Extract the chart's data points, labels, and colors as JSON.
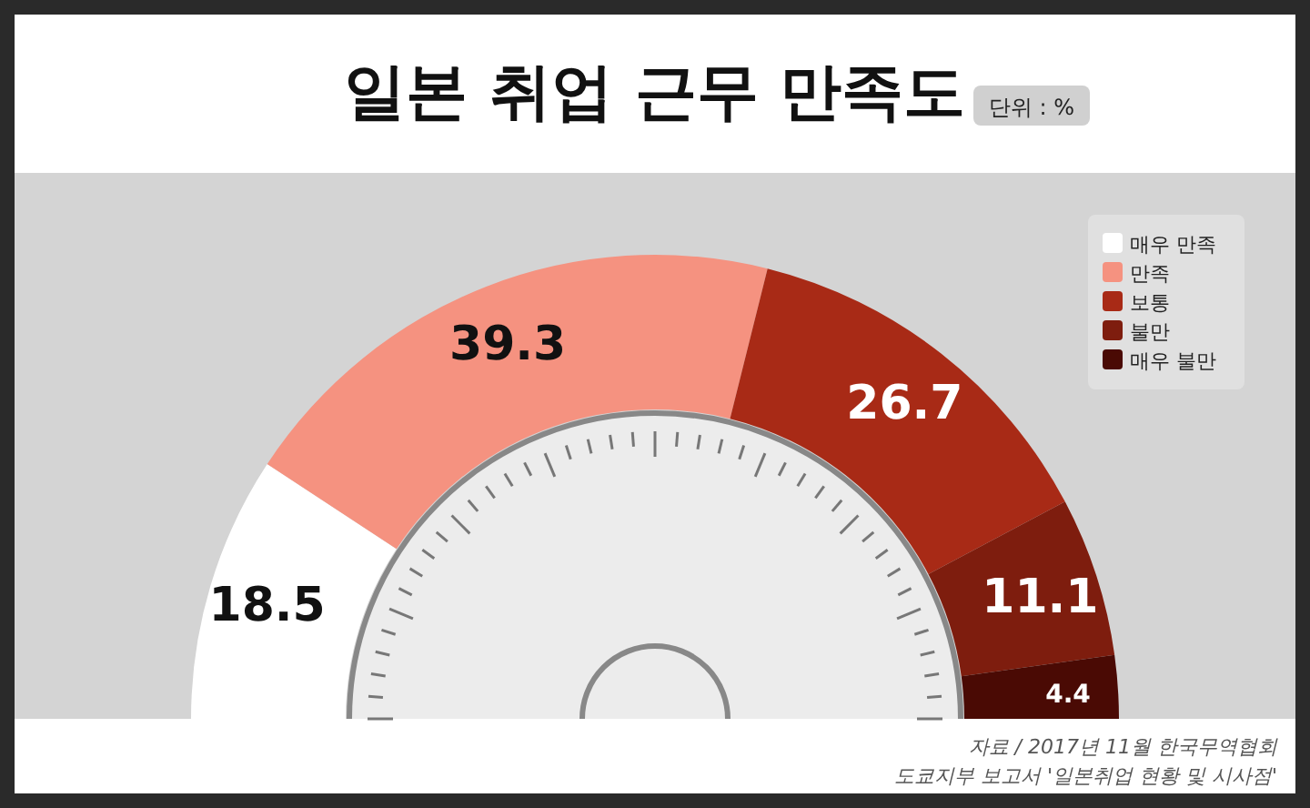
{
  "chart_data": {
    "type": "donut",
    "title": "일본 취업 근무 만족도",
    "subtitle": "단위 : %",
    "categories": [
      "매우 만족",
      "만족",
      "보통",
      "불만",
      "매우 불만"
    ],
    "values": [
      18.5,
      39.3,
      26.7,
      11.1,
      4.4
    ],
    "colors": [
      "#ffffff",
      "#f59280",
      "#a82a16",
      "#7e1d0e",
      "#4a0a04"
    ],
    "data_labels": true,
    "legend": "top right",
    "annotations": [
      "자료 / 2017년 11월 한국무역협회",
      "도쿄지부 보고서 '일본취업 현황 및 시사점'"
    ]
  }
}
